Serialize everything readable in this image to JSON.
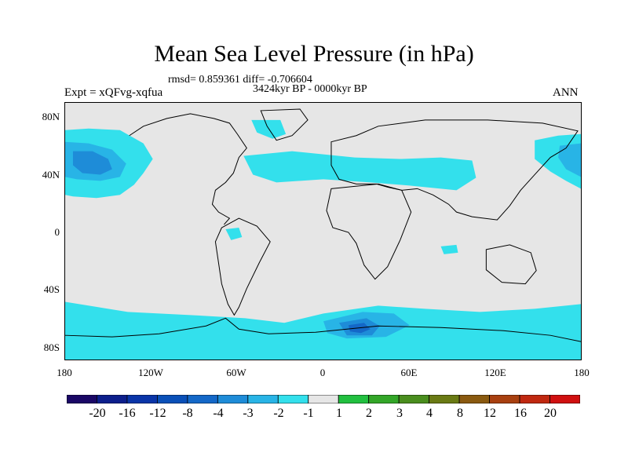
{
  "title": "Mean Sea Level Pressure (in hPa)",
  "stats": "rmsd= 0.859361 diff= -0.706604",
  "period": "3424kyr BP - 0000kyr BP",
  "experiment": "Expt = xQFvg-xqfua",
  "season": "ANN",
  "lat_labels": [
    "80N",
    "40N",
    "0",
    "40S",
    "80S"
  ],
  "lon_labels": [
    "180",
    "120W",
    "60W",
    "0",
    "60E",
    "120E",
    "180"
  ],
  "colorbar": {
    "labels": [
      "-20",
      "-16",
      "-12",
      "-8",
      "-4",
      "-3",
      "-2",
      "-1",
      "1",
      "2",
      "3",
      "4",
      "8",
      "12",
      "16",
      "20"
    ],
    "colors": [
      "#1a0866",
      "#0d1f8c",
      "#0a35a8",
      "#0a50b8",
      "#1468c8",
      "#1e8cd8",
      "#28b4e6",
      "#33e0ec",
      "#e6e6e6",
      "#22c040",
      "#33a628",
      "#4a8e1e",
      "#6a7a14",
      "#8a5a10",
      "#a84010",
      "#c02810",
      "#d01010"
    ]
  },
  "colors": {
    "background": "#e6e6e6",
    "anomaly_weak": "#33e0ec",
    "anomaly_mid": "#28b4e6",
    "anomaly_strong": "#1e8cd8",
    "anomaly_deep": "#1468c8",
    "coast": "#000000"
  }
}
